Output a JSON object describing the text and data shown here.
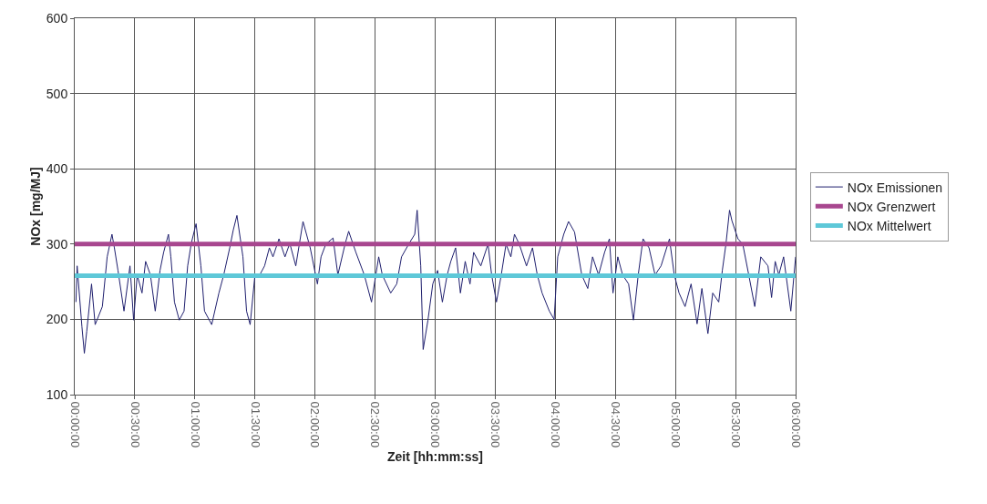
{
  "chart_data": {
    "type": "line",
    "xlabel": "Zeit [hh:mm:ss]",
    "ylabel": "NOx [mg/MJ]",
    "xlim": [
      0,
      6
    ],
    "ylim": [
      100,
      600
    ],
    "xticks": [
      {
        "value": 0,
        "label": "00:00:00"
      },
      {
        "value": 0.5,
        "label": "00:30:00"
      },
      {
        "value": 1,
        "label": "01:00:00"
      },
      {
        "value": 1.5,
        "label": "01:30:00"
      },
      {
        "value": 2,
        "label": "02:00:00"
      },
      {
        "value": 2.5,
        "label": "02:30:00"
      },
      {
        "value": 3,
        "label": "03:00:00"
      },
      {
        "value": 3.5,
        "label": "03:30:00"
      },
      {
        "value": 4,
        "label": "04:00:00"
      },
      {
        "value": 4.5,
        "label": "04:30:00"
      },
      {
        "value": 5,
        "label": "05:00:00"
      },
      {
        "value": 5.5,
        "label": "05:30:00"
      },
      {
        "value": 6,
        "label": "06:00:00"
      }
    ],
    "yticks": [
      100,
      200,
      300,
      400,
      500,
      600
    ],
    "grid": true,
    "legend": "right",
    "marker": "none",
    "series": [
      {
        "name": "NOx Emissionen",
        "color": "#1f1f6e",
        "x": [
          0.01,
          0.02,
          0.06,
          0.08,
          0.1,
          0.14,
          0.17,
          0.23,
          0.27,
          0.31,
          0.33,
          0.36,
          0.41,
          0.46,
          0.49,
          0.52,
          0.56,
          0.59,
          0.63,
          0.67,
          0.71,
          0.74,
          0.78,
          0.8,
          0.83,
          0.87,
          0.91,
          0.94,
          0.97,
          1.01,
          1.05,
          1.08,
          1.14,
          1.2,
          1.24,
          1.29,
          1.32,
          1.35,
          1.4,
          1.43,
          1.46,
          1.5,
          1.54,
          1.58,
          1.62,
          1.65,
          1.7,
          1.75,
          1.79,
          1.84,
          1.9,
          1.96,
          2.02,
          2.05,
          2.09,
          2.15,
          2.19,
          2.25,
          2.28,
          2.34,
          2.41,
          2.47,
          2.53,
          2.56,
          2.63,
          2.68,
          2.72,
          2.78,
          2.83,
          2.85,
          2.88,
          2.9,
          2.94,
          2.98,
          3.02,
          3.06,
          3.1,
          3.13,
          3.17,
          3.21,
          3.25,
          3.29,
          3.32,
          3.38,
          3.44,
          3.47,
          3.51,
          3.55,
          3.59,
          3.63,
          3.66,
          3.7,
          3.76,
          3.81,
          3.85,
          3.89,
          3.95,
          3.99,
          4.02,
          4.07,
          4.11,
          4.16,
          4.22,
          4.27,
          4.31,
          4.36,
          4.41,
          4.45,
          4.48,
          4.52,
          4.56,
          4.61,
          4.65,
          4.69,
          4.73,
          4.78,
          4.83,
          4.88,
          4.95,
          4.99,
          5.03,
          5.08,
          5.13,
          5.18,
          5.22,
          5.27,
          5.31,
          5.36,
          5.39,
          5.42,
          5.45,
          5.47,
          5.52,
          5.56,
          5.61,
          5.66,
          5.71,
          5.77,
          5.8,
          5.83,
          5.86,
          5.9,
          5.96,
          6.0
        ],
        "values": [
          223,
          271,
          190,
          155,
          184,
          247,
          193,
          217,
          283,
          313,
          295,
          265,
          211,
          271,
          199,
          259,
          235,
          277,
          259,
          211,
          265,
          289,
          313,
          283,
          223,
          199,
          211,
          271,
          301,
          327,
          271,
          211,
          193,
          235,
          259,
          295,
          319,
          338,
          283,
          211,
          193,
          259,
          259,
          271,
          295,
          283,
          307,
          283,
          301,
          271,
          330,
          295,
          247,
          283,
          300,
          308,
          259,
          300,
          317,
          289,
          259,
          223,
          283,
          259,
          235,
          247,
          283,
          300,
          313,
          345,
          271,
          160,
          199,
          247,
          265,
          223,
          259,
          277,
          295,
          235,
          277,
          247,
          289,
          271,
          300,
          259,
          223,
          259,
          300,
          283,
          313,
          300,
          271,
          295,
          259,
          235,
          211,
          200,
          283,
          313,
          330,
          316,
          259,
          241,
          283,
          259,
          289,
          307,
          235,
          283,
          259,
          247,
          199,
          259,
          307,
          295,
          259,
          271,
          307,
          259,
          235,
          217,
          247,
          194,
          241,
          181,
          235,
          223,
          265,
          300,
          345,
          331,
          307,
          300,
          259,
          217,
          283,
          271,
          229,
          277,
          259,
          283,
          211,
          283
        ]
      },
      {
        "name": "NOx Grenzwert",
        "color": "#a8478f",
        "x": [
          0,
          6
        ],
        "values": [
          300,
          300
        ]
      },
      {
        "name": "NOx Mittelwert",
        "color": "#5ec8d8",
        "x": [
          0,
          6
        ],
        "values": [
          258,
          258
        ]
      }
    ]
  }
}
